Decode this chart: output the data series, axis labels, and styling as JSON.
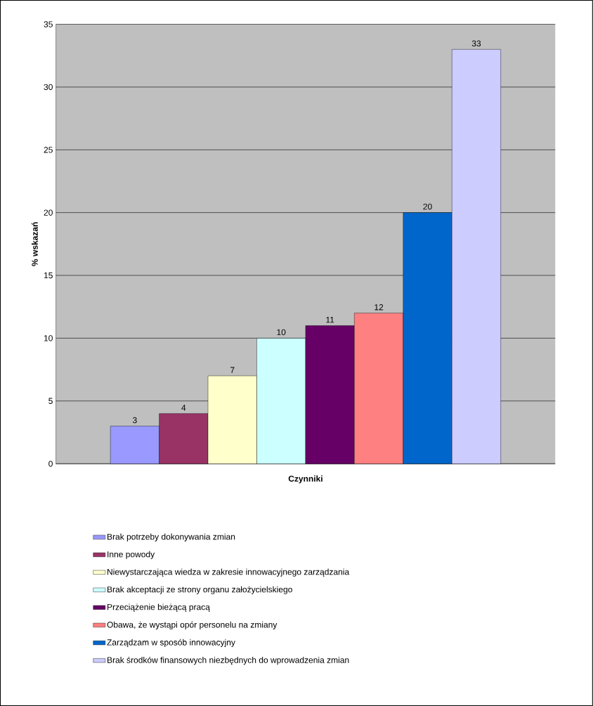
{
  "chart_data": {
    "type": "bar",
    "xlabel": "Czynniki",
    "ylabel": "% wskazań",
    "categories": [
      null
    ],
    "ylim": [
      0,
      35
    ],
    "yticks": [
      0,
      5,
      10,
      15,
      20,
      25,
      30,
      35
    ],
    "grid": "y",
    "legend": "bottom",
    "data_labels": true,
    "series": [
      {
        "name": "Brak potrzeby dokonywania zmian",
        "color": "#9999ff",
        "values": [
          3
        ]
      },
      {
        "name": "Inne powody",
        "color": "#993366",
        "values": [
          4
        ]
      },
      {
        "name": "Niewystarczająca wiedza w zakresie innowacyjnego zarządzania",
        "color": "#ffffcc",
        "values": [
          7
        ]
      },
      {
        "name": "Brak akceptacji ze strony organu założycielskiego",
        "color": "#ccffff",
        "values": [
          10
        ]
      },
      {
        "name": "Przeciążenie bieżącą pracą",
        "color": "#660066",
        "values": [
          11
        ]
      },
      {
        "name": "Obawa, że wystąpi opór personelu na zmiany",
        "color": "#ff8080",
        "values": [
          12
        ]
      },
      {
        "name": "Zarządzam w sposób innowacyjny",
        "color": "#0066cc",
        "values": [
          20
        ]
      },
      {
        "name": "Brak środków finansowych niezbędnych do wprowadzenia zmian",
        "color": "#ccccff",
        "values": [
          33
        ]
      }
    ]
  }
}
